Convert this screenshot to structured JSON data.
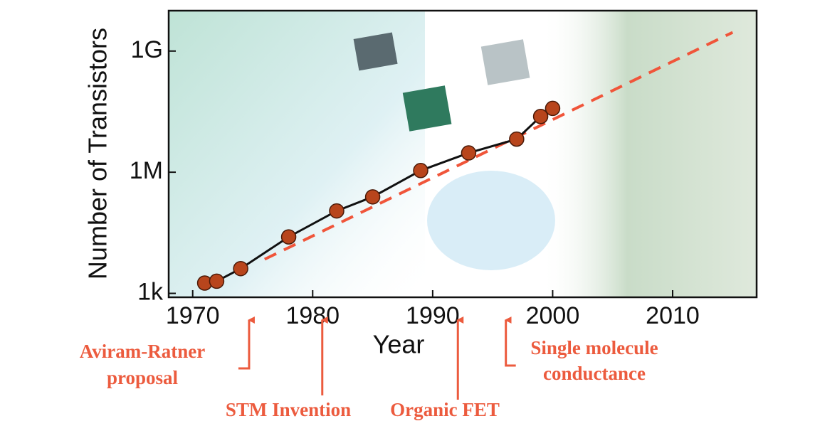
{
  "chart_data": {
    "type": "line",
    "xlabel": "Year",
    "ylabel": "Number of Transistors",
    "xlim": [
      1968,
      2017
    ],
    "xticks": [
      1970,
      1980,
      1990,
      2000,
      2010
    ],
    "ylim": [
      800,
      10000000000
    ],
    "yticks": [
      {
        "value": 1000,
        "label": "1k"
      },
      {
        "value": 1000000,
        "label": "1M"
      },
      {
        "value": 1000000000,
        "label": "1G"
      }
    ],
    "log_y": true,
    "x": [
      1971,
      1972,
      1974,
      1978,
      1982,
      1985,
      1989,
      1993,
      1997,
      1999,
      2000
    ],
    "series": [
      {
        "color": "#111111",
        "marker_color": "#b8451c",
        "values": [
          1800,
          2000,
          4100,
          25000,
          110000,
          245000,
          1100000,
          3000000,
          6600000,
          24000000,
          38000000
        ]
      }
    ],
    "trend": {
      "color": "#f0553a",
      "x": [
        1976,
        2015
      ],
      "values": [
        7000,
        2900000000
      ]
    },
    "annotations": [
      {
        "x": 1974.7,
        "lines": [
          "Aviram-Ratner",
          "proposal"
        ]
      },
      {
        "x": 1980.8,
        "lines": [
          "STM Invention"
        ]
      },
      {
        "x": 1992.1,
        "lines": [
          "Organic FET"
        ]
      },
      {
        "x": 1996.1,
        "lines": [
          "Single molecule",
          "conductance"
        ]
      }
    ]
  }
}
